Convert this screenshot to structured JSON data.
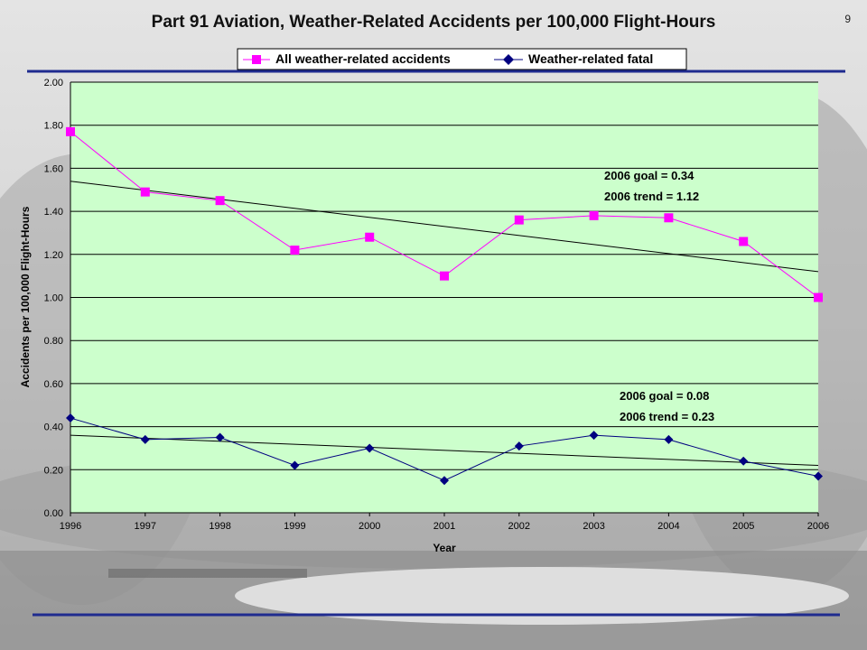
{
  "slide": {
    "title": "Part 91 Aviation, Weather-Related Accidents per 100,000 Flight-Hours",
    "page_number": "9"
  },
  "colors": {
    "plot_bg": "#ccffcc",
    "accidents_series": "#ff00ff",
    "fatal_series": "#000080",
    "trend_line": "#000000",
    "rule_blue": "#1f2b8f"
  },
  "chart_data": {
    "type": "line",
    "xlabel": "Year",
    "ylabel": "Accidents per 100,000 Flight-Hours",
    "ylim": [
      0,
      2
    ],
    "ytick_step": 0.2,
    "ytick_labels": [
      "0.00",
      "0.20",
      "0.40",
      "0.60",
      "0.80",
      "1.00",
      "1.20",
      "1.40",
      "1.60",
      "1.80",
      "2.00"
    ],
    "grid": true,
    "legend_position": "top",
    "x": [
      1996,
      1997,
      1998,
      1999,
      2000,
      2001,
      2002,
      2003,
      2004,
      2005,
      2006
    ],
    "series": [
      {
        "name": "All weather-related accidents",
        "marker": "square",
        "values": [
          1.77,
          1.49,
          1.45,
          1.22,
          1.28,
          1.1,
          1.36,
          1.38,
          1.37,
          1.26,
          1.0
        ],
        "trend": [
          1.54,
          1.12
        ]
      },
      {
        "name": "Weather-related fatal",
        "marker": "diamond",
        "values": [
          0.44,
          0.34,
          0.35,
          0.22,
          0.3,
          0.15,
          0.31,
          0.36,
          0.34,
          0.24,
          0.17
        ],
        "trend": [
          0.36,
          0.22
        ]
      }
    ],
    "annotations": [
      {
        "lines": [
          "2006 goal = 0.34",
          "2006 trend = 1.12"
        ]
      },
      {
        "lines": [
          "2006 goal = 0.08",
          "2006 trend = 0.23"
        ]
      }
    ]
  }
}
